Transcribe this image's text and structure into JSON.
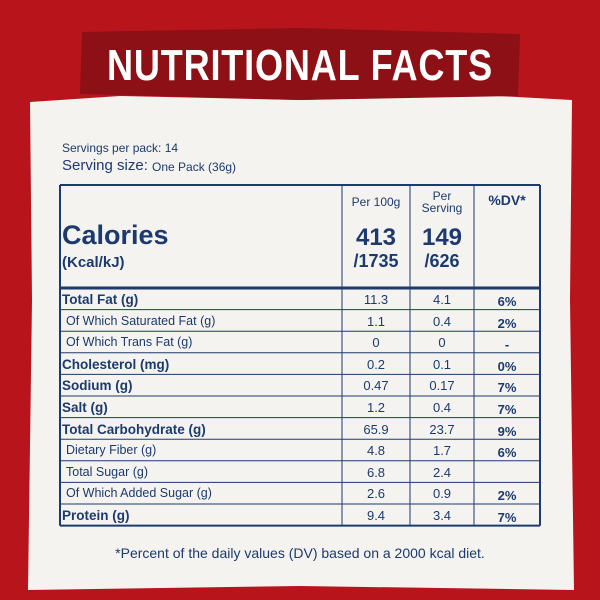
{
  "header": {
    "title": "NUTRITIONAL FACTS"
  },
  "servings_per_pack": "Servings per pack: 14",
  "serving_size": {
    "label": "Serving size:",
    "value": "One Pack (36g)"
  },
  "table": {
    "columns": [
      "Per 100g",
      "Per Serving",
      "%DV*"
    ],
    "calories": {
      "label": "Calories",
      "unit": "(Kcal/kJ)",
      "per_100g": [
        "413",
        "/1735"
      ],
      "per_serving": [
        "149",
        "/626"
      ]
    },
    "rows": [
      {
        "name": "Total Fat (g)",
        "per_100g": "11.3",
        "per_serving": "4.1",
        "dv": "6%"
      },
      {
        "name": "Of Which Saturated Fat (g)",
        "per_100g": "1.1",
        "per_serving": "0.4",
        "dv": "2%"
      },
      {
        "name": "Of Which Trans Fat (g)",
        "per_100g": "0",
        "per_serving": "0",
        "dv": "-"
      },
      {
        "name": "Cholesterol (mg)",
        "per_100g": "0.2",
        "per_serving": "0.1",
        "dv": "0%"
      },
      {
        "name": "Sodium (g)",
        "per_100g": "0.47",
        "per_serving": "0.17",
        "dv": "7%"
      },
      {
        "name": "Salt (g)",
        "per_100g": "1.2",
        "per_serving": "0.4",
        "dv": "7%"
      },
      {
        "name": "Total Carbohydrate (g)",
        "per_100g": "65.9",
        "per_serving": "23.7",
        "dv": "9%"
      },
      {
        "name": "Dietary Fiber (g)",
        "per_100g": "4.8",
        "per_serving": "1.7",
        "dv": "6%"
      },
      {
        "name": "Total Sugar (g)",
        "per_100g": "6.8",
        "per_serving": "2.4"
      },
      {
        "name": "Of Which Added Sugar (g)",
        "per_100g": "2.6",
        "per_serving": "0.9",
        "dv": "2%"
      },
      {
        "name": "Protein (g)",
        "per_100g": "9.4",
        "per_serving": "3.4",
        "dv": "7%"
      }
    ]
  },
  "footnote": "*Percent of the daily values (DV) based on a 2000 kcal diet."
}
